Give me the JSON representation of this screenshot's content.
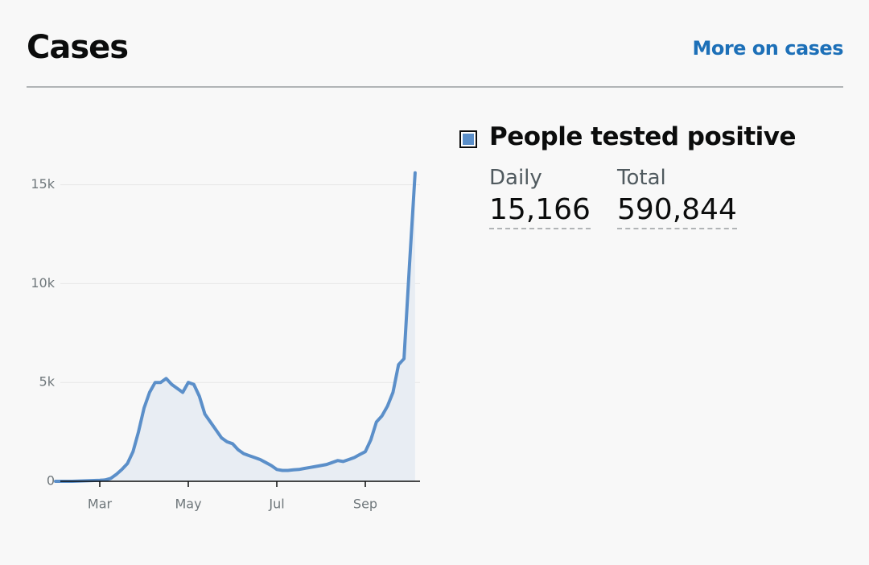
{
  "header": {
    "title": "Cases",
    "link": "More on cases"
  },
  "headline": {
    "daily_label": "Daily",
    "daily_value": "15,166",
    "total_label": "Total",
    "total_value": "590,844"
  },
  "chart_data": {
    "type": "line",
    "categories": [
      null,
      null,
      null,
      null,
      null,
      null,
      null,
      null,
      "Mar",
      null,
      null,
      null,
      null,
      null,
      null,
      null,
      null,
      null,
      null,
      null,
      null,
      null,
      null,
      null,
      "May",
      null,
      null,
      null,
      null,
      null,
      null,
      null,
      null,
      null,
      null,
      null,
      null,
      null,
      null,
      null,
      "Jul",
      null,
      null,
      null,
      null,
      null,
      null,
      null,
      null,
      null,
      null,
      null,
      null,
      null,
      null,
      null,
      "Sep",
      null,
      null,
      null,
      null,
      null,
      null,
      null,
      null,
      null
    ],
    "series": [
      {
        "name": "People tested positive",
        "color": "#5b8fc9",
        "fill": "#e8edf3",
        "values": [
          0,
          0,
          0,
          0,
          10,
          20,
          30,
          40,
          50,
          70,
          150,
          350,
          600,
          900,
          1500,
          2500,
          3700,
          4500,
          5000,
          5000,
          5200,
          4900,
          4700,
          4500,
          5000,
          4900,
          4300,
          3400,
          3000,
          2600,
          2200,
          2000,
          1900,
          1600,
          1400,
          1300,
          1200,
          1100,
          950,
          800,
          600,
          550,
          550,
          580,
          600,
          650,
          700,
          750,
          800,
          850,
          950,
          1050,
          1000,
          1100,
          1200,
          1350,
          1500,
          2100,
          3000,
          3300,
          3800,
          4500,
          5900,
          6200,
          11000,
          15600
        ]
      }
    ],
    "ylim": [
      0,
      16000
    ],
    "yticks": [
      0,
      {
        "value": 5000,
        "label": "5k"
      },
      {
        "value": 10000,
        "label": "10k"
      },
      {
        "value": 15000,
        "label": "15k"
      }
    ],
    "grid": true
  }
}
